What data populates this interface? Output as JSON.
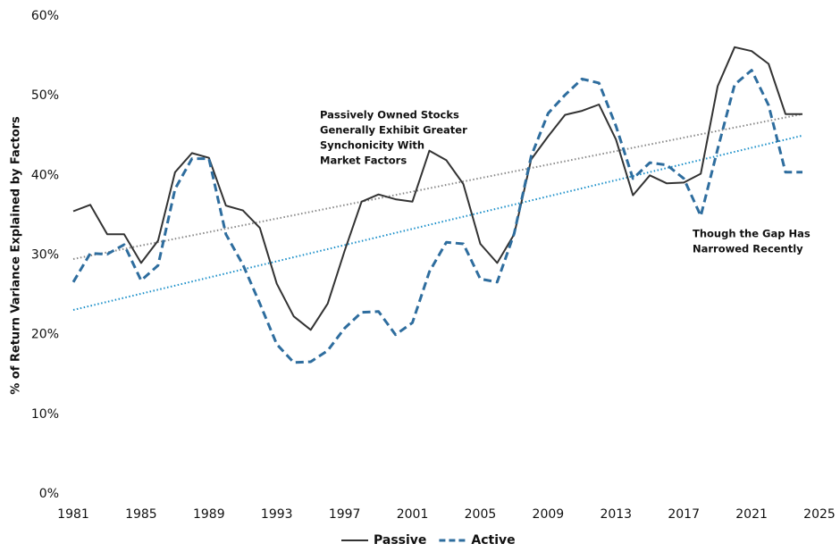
{
  "chart_data": {
    "type": "line",
    "y_label": "% of Return Variance Explained by Factors",
    "x": [
      1981,
      1982,
      1983,
      1984,
      1985,
      1986,
      1987,
      1988,
      1989,
      1990,
      1991,
      1992,
      1993,
      1994,
      1995,
      1996,
      1997,
      1998,
      1999,
      2000,
      2001,
      2002,
      2003,
      2004,
      2005,
      2006,
      2007,
      2008,
      2009,
      2010,
      2011,
      2012,
      2013,
      2014,
      2015,
      2016,
      2017,
      2018,
      2019,
      2020,
      2021,
      2022,
      2023,
      2024
    ],
    "series": [
      {
        "name": "Passive",
        "color": "#333333",
        "dash": false,
        "values": [
          35.5,
          36.3,
          32.6,
          32.6,
          29.0,
          31.8,
          40.4,
          42.8,
          42.2,
          36.2,
          35.6,
          33.4,
          26.4,
          22.3,
          20.6,
          23.9,
          30.5,
          36.7,
          37.6,
          37.0,
          36.7,
          43.1,
          41.9,
          38.9,
          31.4,
          29.0,
          32.6,
          42.0,
          44.9,
          47.6,
          48.1,
          48.9,
          44.5,
          37.5,
          40.0,
          39.0,
          39.1,
          40.2,
          51.2,
          56.1,
          55.6,
          54.0,
          47.7,
          47.7
        ]
      },
      {
        "name": "Active",
        "color": "#2e6d9e",
        "dash": true,
        "values": [
          26.6,
          30.2,
          30.1,
          31.3,
          26.8,
          28.7,
          38.3,
          42.1,
          42.1,
          32.6,
          28.8,
          23.9,
          18.8,
          16.5,
          16.6,
          18.0,
          20.8,
          22.8,
          22.9,
          20.0,
          21.5,
          27.9,
          31.6,
          31.4,
          27.0,
          26.6,
          32.7,
          42.4,
          47.8,
          50.1,
          52.1,
          51.6,
          46.2,
          39.6,
          41.6,
          41.3,
          39.6,
          34.9,
          43.3,
          51.4,
          53.2,
          48.8,
          40.4,
          40.4
        ]
      }
    ],
    "trendlines": [
      {
        "color": "#888888",
        "x": [
          1981,
          2024
        ],
        "values": [
          29.5,
          47.7
        ]
      },
      {
        "color": "#1a8fc9",
        "x": [
          1981,
          2024
        ],
        "values": [
          23.1,
          45.0
        ]
      }
    ],
    "annotations": [
      [
        "Passively Owned Stocks",
        "Generally Exhibit Greater",
        "Synchonicity With",
        "Market Factors"
      ],
      [
        "Though the Gap Has",
        "Narrowed Recently"
      ]
    ],
    "xlim": [
      1981,
      2025
    ],
    "xticks": [
      1981,
      1985,
      1989,
      1993,
      1997,
      2001,
      2005,
      2009,
      2013,
      2017,
      2021,
      2025
    ],
    "ylim": [
      0,
      60
    ],
    "yticks": [
      {
        "value": 0,
        "label": "0%"
      },
      {
        "value": 10,
        "label": "10%"
      },
      {
        "value": 20,
        "label": "20%"
      },
      {
        "value": 30,
        "label": "30%"
      },
      {
        "value": 40,
        "label": "40%"
      },
      {
        "value": 50,
        "label": "50%"
      },
      {
        "value": 60,
        "label": "60%"
      }
    ],
    "legend": "bottom",
    "grid": false
  }
}
